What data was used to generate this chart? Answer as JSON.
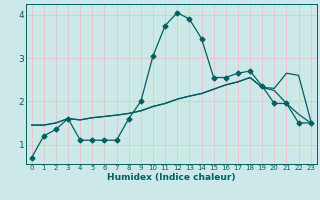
{
  "xlabel": "Humidex (Indice chaleur)",
  "bg_color": "#cce8e8",
  "grid_color": "#e8c8c8",
  "line_color": "#006060",
  "xlim": [
    -0.5,
    23.5
  ],
  "ylim": [
    0.55,
    4.25
  ],
  "x_ticks": [
    0,
    1,
    2,
    3,
    4,
    5,
    6,
    7,
    8,
    9,
    10,
    11,
    12,
    13,
    14,
    15,
    16,
    17,
    18,
    19,
    20,
    21,
    22,
    23
  ],
  "yticks": [
    1,
    2,
    3,
    4
  ],
  "line1_y": [
    0.7,
    1.2,
    1.35,
    1.6,
    1.1,
    1.1,
    1.1,
    1.1,
    1.6,
    2.0,
    3.05,
    3.75,
    4.05,
    3.9,
    3.45,
    2.55,
    2.55,
    2.65,
    2.7,
    2.35,
    1.95,
    1.95,
    1.5,
    1.5
  ],
  "line2_y": [
    1.45,
    1.45,
    1.5,
    1.6,
    1.57,
    1.62,
    1.65,
    1.68,
    1.72,
    1.78,
    1.88,
    1.95,
    2.05,
    2.12,
    2.18,
    2.28,
    2.38,
    2.45,
    2.55,
    2.32,
    2.3,
    2.65,
    2.6,
    1.55
  ],
  "line3_y": [
    1.45,
    1.45,
    1.5,
    1.6,
    1.57,
    1.62,
    1.65,
    1.68,
    1.72,
    1.78,
    1.88,
    1.95,
    2.05,
    2.12,
    2.18,
    2.28,
    2.38,
    2.45,
    2.55,
    2.32,
    2.25,
    1.95,
    1.7,
    1.5
  ]
}
